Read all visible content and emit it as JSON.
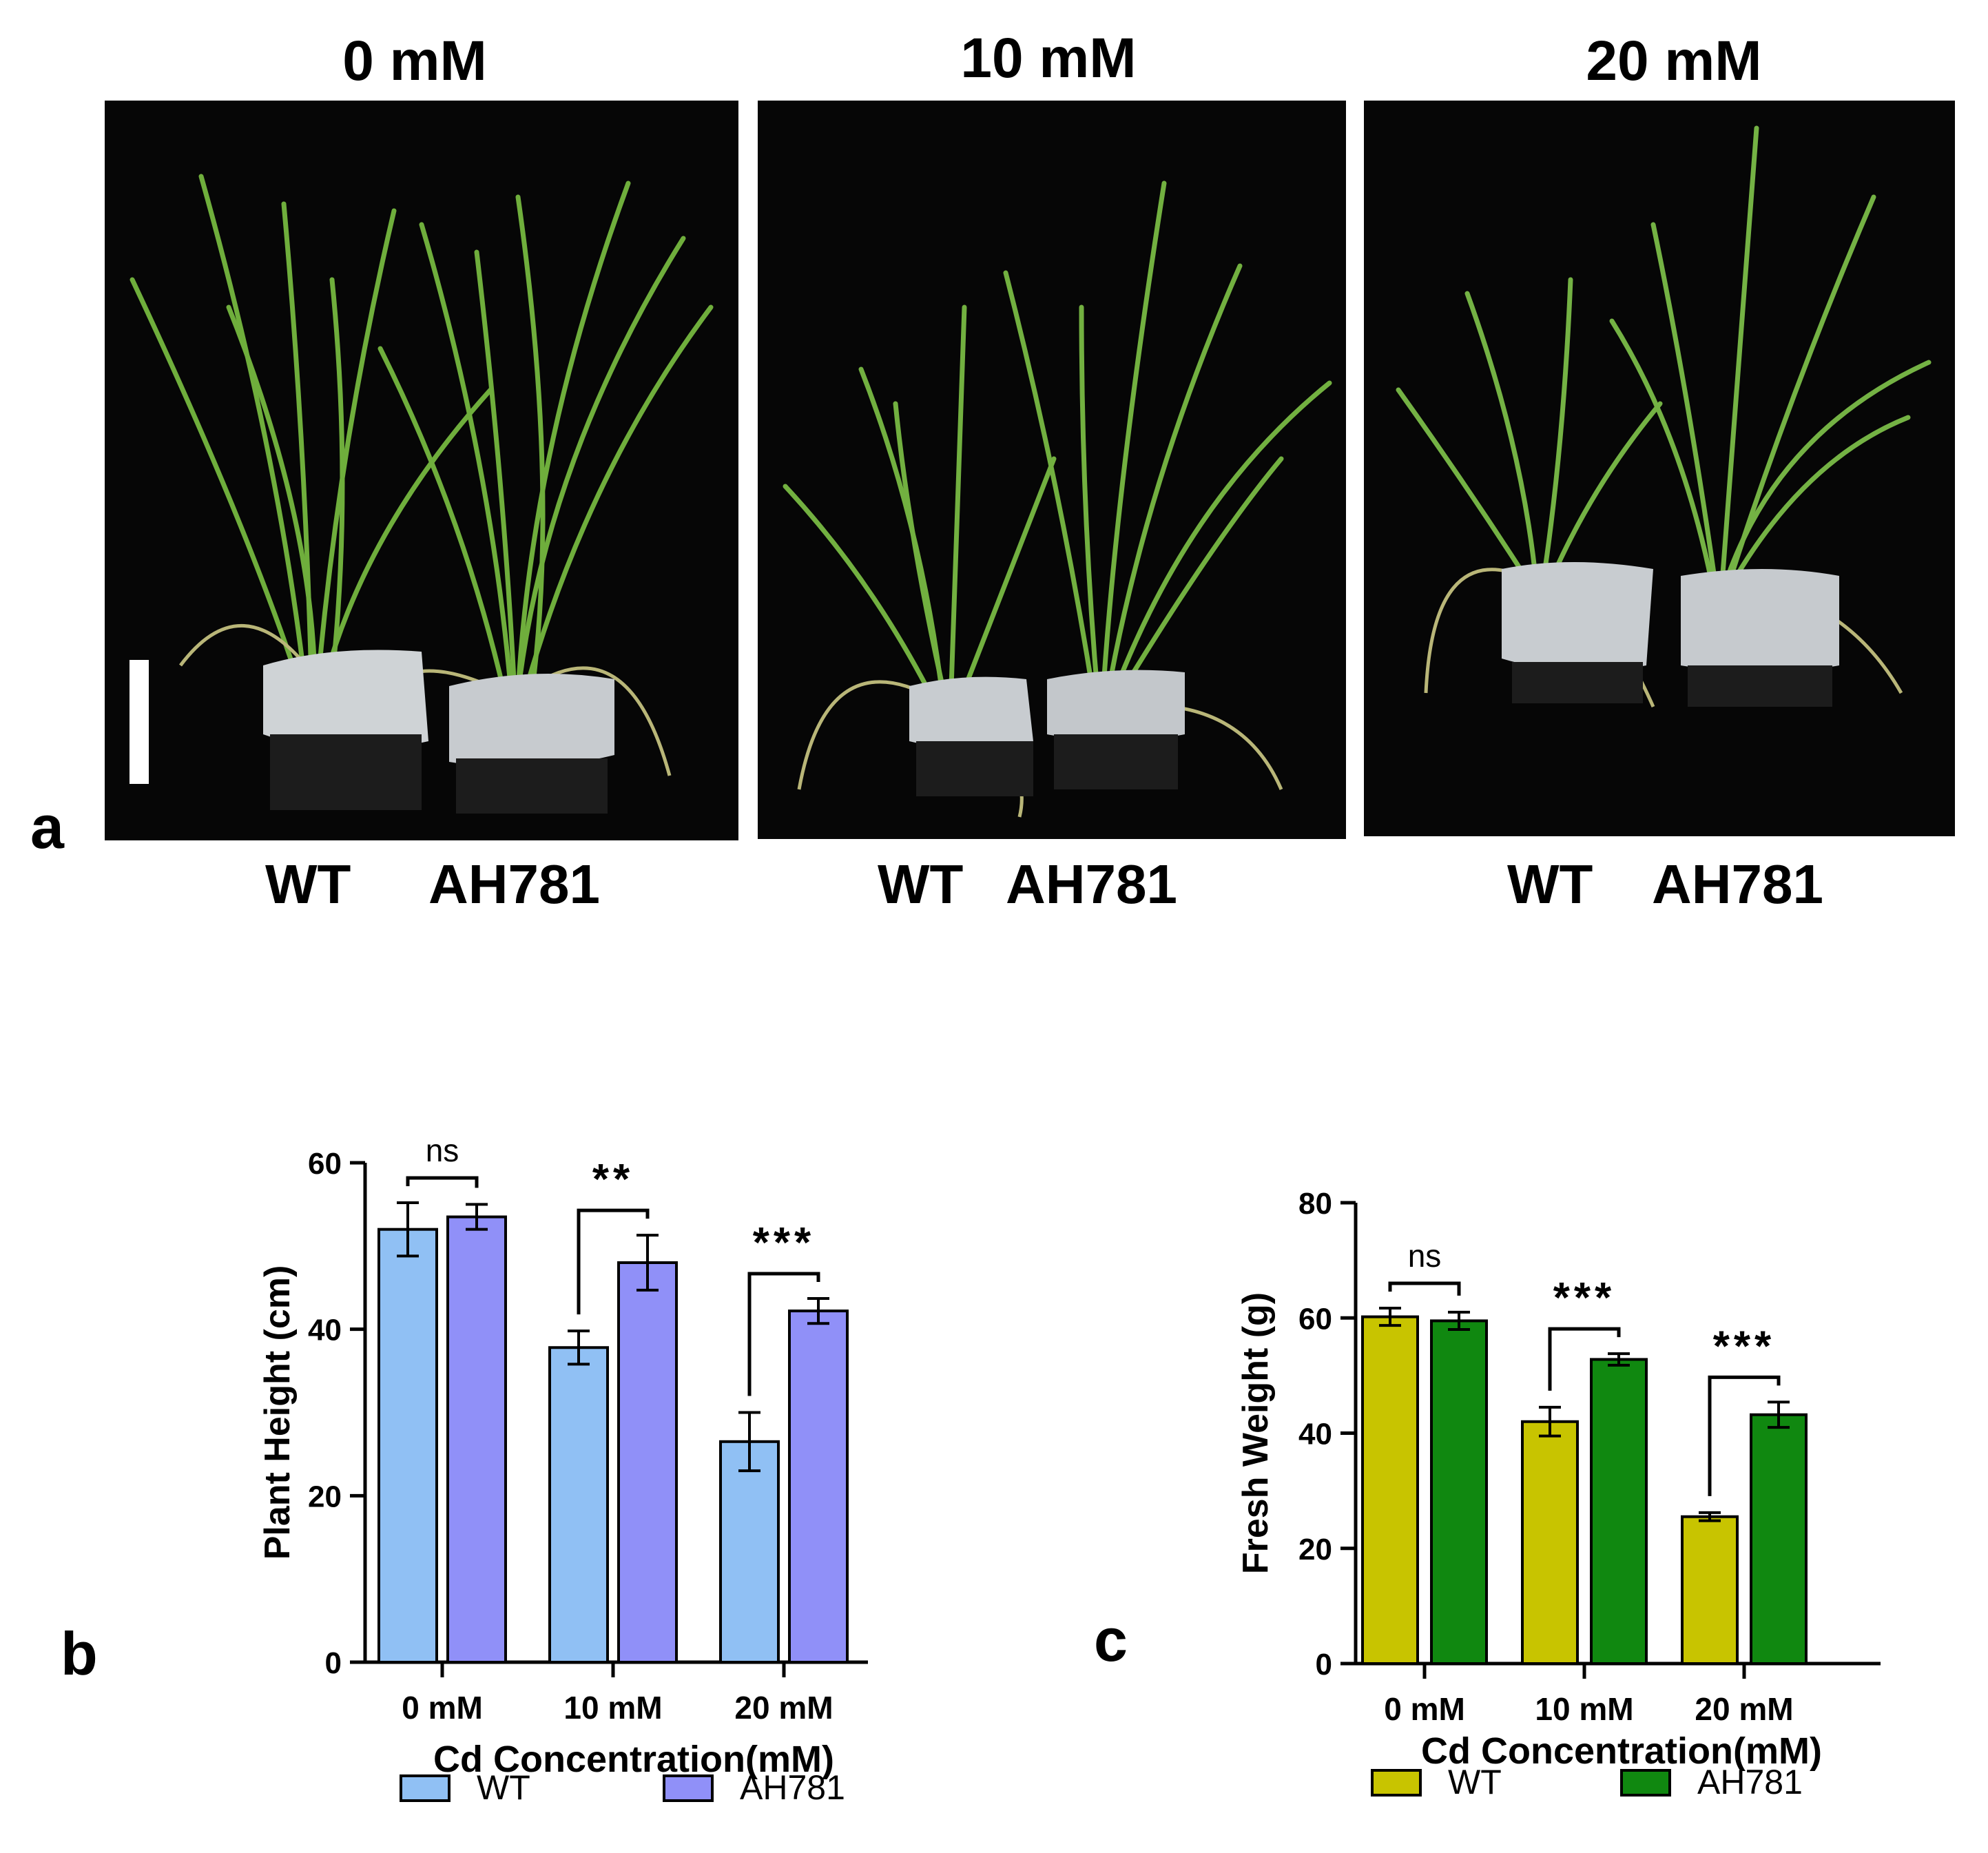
{
  "panel_a": {
    "letter": "a",
    "conditions": [
      {
        "title": "0 mM",
        "wt_label": "WT",
        "mutant_label": "AH781"
      },
      {
        "title": "10 mM",
        "wt_label": "WT",
        "mutant_label": "AH781"
      },
      {
        "title": "20 mM",
        "wt_label": "WT",
        "mutant_label": "AH781"
      }
    ]
  },
  "chart_data": [
    {
      "panel_letter": "b",
      "type": "bar",
      "categories": [
        "0 mM",
        "10 mM",
        "20 mM"
      ],
      "xlabel": "Cd Concentration(mM)",
      "ylabel": "Plant Height (cm)",
      "ylim": [
        0,
        60
      ],
      "yticks": [
        0,
        20,
        40,
        60
      ],
      "series": [
        {
          "name": "WT",
          "color": "#90c0f4",
          "values": [
            52.0,
            37.8,
            26.5
          ],
          "errors": [
            3.2,
            2.0,
            3.5
          ]
        },
        {
          "name": "AH781",
          "color": "#9090f8",
          "values": [
            53.5,
            48.0,
            42.2
          ],
          "errors": [
            1.5,
            3.3,
            1.5
          ]
        }
      ],
      "significance": [
        "ns",
        "**",
        "***"
      ],
      "legend": "bottom"
    },
    {
      "panel_letter": "c",
      "type": "bar",
      "categories": [
        "0 mM",
        "10 mM",
        "20 mM"
      ],
      "xlabel": "Cd Concentration(mM)",
      "ylabel": "Fresh Weight (g)",
      "ylim": [
        0,
        80
      ],
      "yticks": [
        0,
        20,
        40,
        60,
        80
      ],
      "series": [
        {
          "name": "WT",
          "color": "#c8c400",
          "values": [
            60.2,
            42.0,
            25.5
          ],
          "errors": [
            1.5,
            2.5,
            0.7
          ]
        },
        {
          "name": "AH781",
          "color": "#108810",
          "values": [
            59.5,
            52.8,
            43.2
          ],
          "errors": [
            1.5,
            1.0,
            2.2
          ]
        }
      ],
      "significance": [
        "ns",
        "***",
        "***"
      ],
      "legend": "bottom"
    }
  ]
}
